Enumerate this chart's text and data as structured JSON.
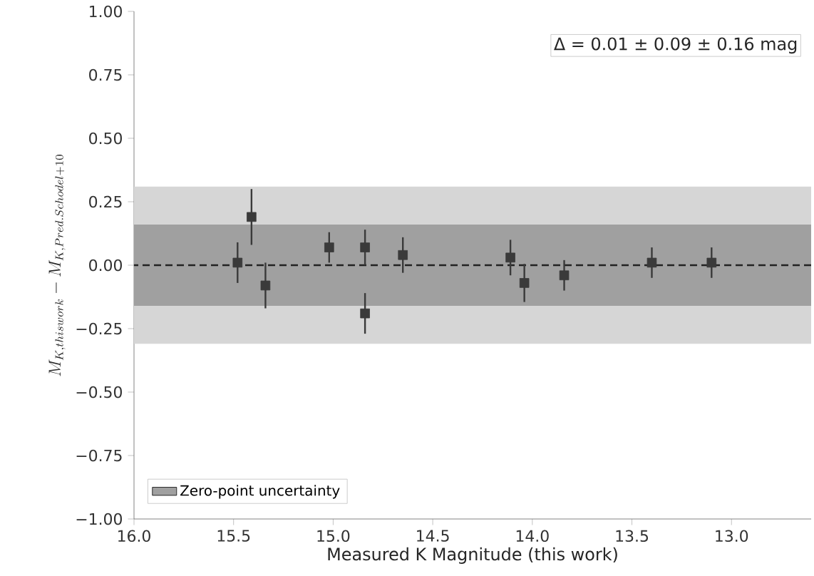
{
  "chart_data": {
    "type": "scatter",
    "xlabel": "Measured K Magnitude (this work)",
    "ylabel": "M_{K, thiswork} - M_{K, Pred. Schodel + 10}",
    "annotations": [
      "Δ = 0.01 ± 0.09 ± 0.16  mag"
    ],
    "xlim": [
      16.0,
      12.6
    ],
    "xticks": [
      {
        "value": 16.0,
        "label": "16.0"
      },
      {
        "value": 15.5,
        "label": "15.5"
      },
      {
        "value": 15.0,
        "label": "15.0"
      },
      {
        "value": 14.5,
        "label": "14.5"
      },
      {
        "value": 14.0,
        "label": "14.0"
      },
      {
        "value": 13.5,
        "label": "13.5"
      },
      {
        "value": 13.0,
        "label": "13.0"
      }
    ],
    "ylim": [
      -1.0,
      1.0
    ],
    "yticks": [
      {
        "value": -1.0,
        "label": "−1.00"
      },
      {
        "value": -0.75,
        "label": "−0.75"
      },
      {
        "value": -0.5,
        "label": "−0.50"
      },
      {
        "value": -0.25,
        "label": "−0.25"
      },
      {
        "value": 0.0,
        "label": "0.00"
      },
      {
        "value": 0.25,
        "label": "0.25"
      },
      {
        "value": 0.5,
        "label": "0.50"
      },
      {
        "value": 0.75,
        "label": "0.75"
      },
      {
        "value": 1.0,
        "label": "1.00"
      }
    ],
    "series": [
      {
        "color": "#3a3a3a",
        "marker": "square",
        "x": [
          15.48,
          15.41,
          15.34,
          15.02,
          14.84,
          14.84,
          14.65,
          14.11,
          14.04,
          13.84,
          13.4,
          13.1
        ],
        "values": [
          0.01,
          0.19,
          -0.08,
          0.07,
          0.07,
          -0.19,
          0.04,
          0.03,
          -0.07,
          -0.04,
          0.01,
          0.01
        ],
        "errors": [
          0.08,
          0.11,
          0.09,
          0.06,
          0.07,
          0.08,
          0.07,
          0.07,
          0.075,
          0.06,
          0.06,
          0.06
        ]
      }
    ],
    "bands": [
      {
        "axis": "y",
        "from": -0.31,
        "to": 0.31,
        "color": "#d6d6d6"
      },
      {
        "axis": "y",
        "from": -0.16,
        "to": 0.16,
        "color": "#a0a0a0",
        "label": "Zero-point uncertainty"
      }
    ],
    "ref_lines": [
      {
        "axis": "y",
        "value": 0.0,
        "color": "#222222",
        "line_style": "dashed"
      }
    ],
    "legend": "bottom left",
    "grid": false
  }
}
